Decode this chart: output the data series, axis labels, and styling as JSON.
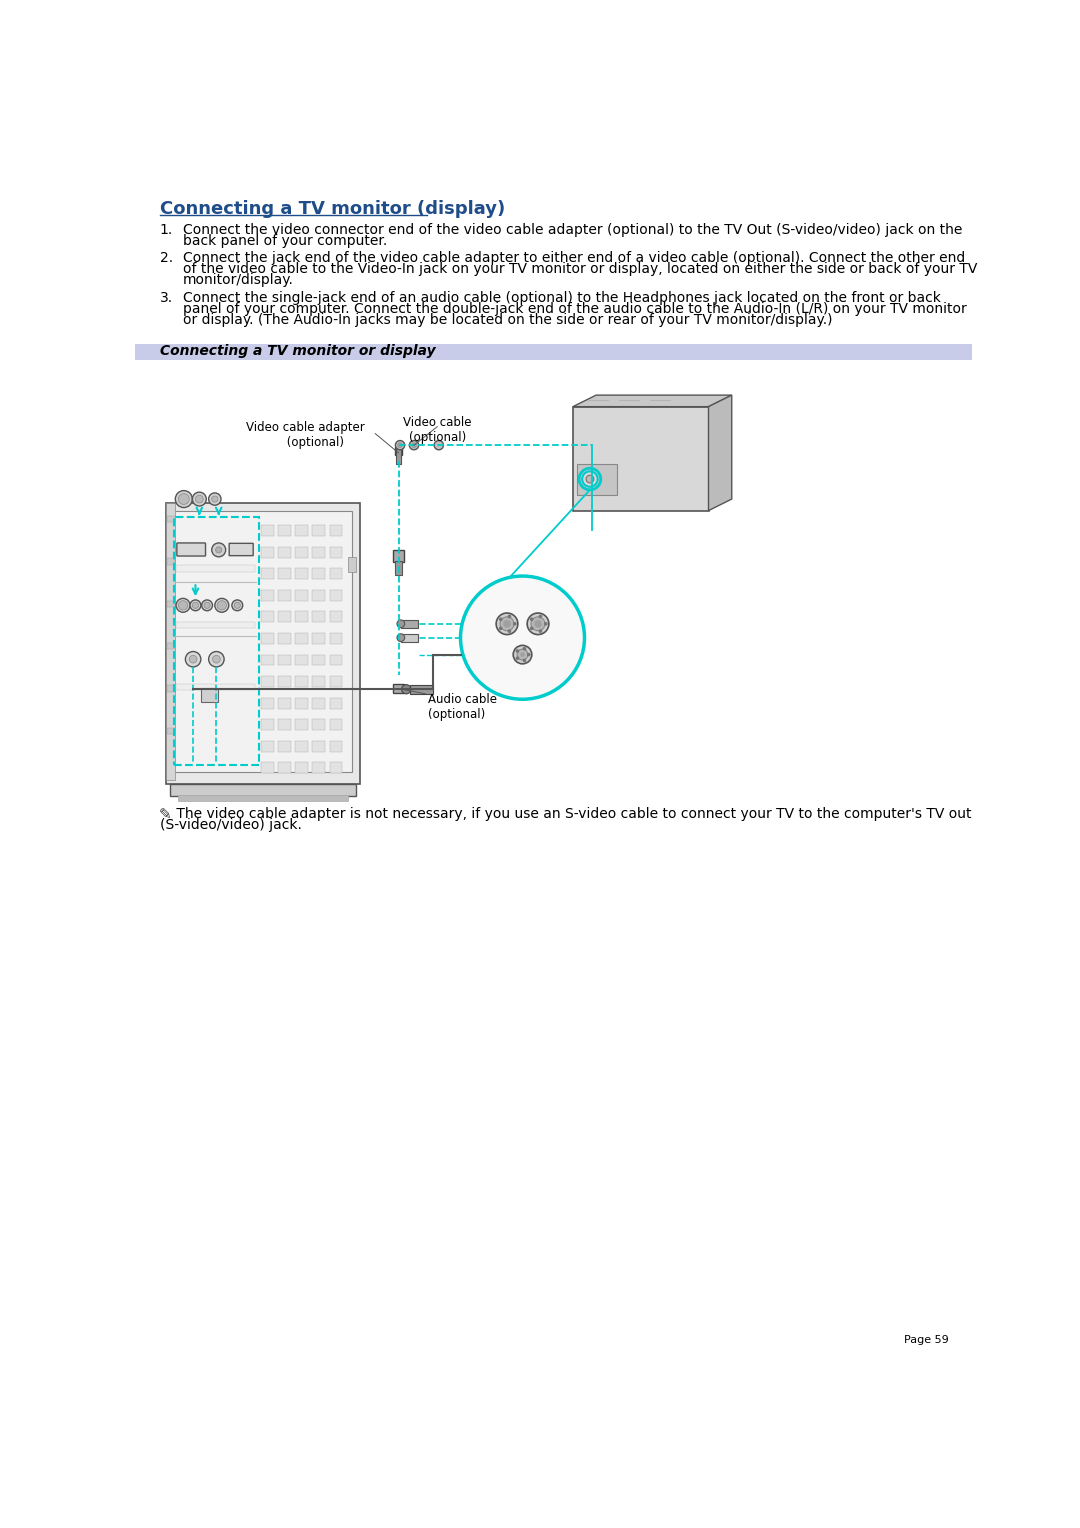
{
  "title": "Connecting a TV monitor (display)",
  "title_color": "#1f4d8a",
  "background_color": "#ffffff",
  "section_bar_color": "#c8cce8",
  "section_bar_text": "Connecting a TV monitor or display",
  "step1_num": "1.",
  "step1": "Connect the video connector end of the video cable adapter (optional) to the TV Out (S-video/video) jack on the\nback panel of your computer.",
  "step2_num": "2.",
  "step2": "Connect the jack end of the video cable adapter to either end of a video cable (optional). Connect the other end\nof the video cable to the Video-In jack on your TV monitor or display, located on either the side or back of your TV\nmonitor/display.",
  "step3_num": "3.",
  "step3": "Connect the single-jack end of an audio cable (optional) to the Headphones jack located on the front or back\npanel of your computer. Connect the double-jack end of the audio cable to the Audio-In (L/R) on your TV monitor\nor display. (The Audio-In jacks may be located on the side or rear of your TV monitor/display.)",
  "label_adapter": "Video cable adapter\n     (optional)",
  "label_video": "Video cable\n(optional)",
  "label_audio": "Audio cable\n(optional)",
  "note_text1": " The video cable adapter is not necessary, if you use an S-video cable to connect your TV to the computer's TV out",
  "note_text2": "(S-video/video) jack.",
  "page_number": "Page 59",
  "title_fs": 13,
  "body_fs": 10,
  "small_fs": 8.5,
  "section_fs": 10,
  "page_fs": 8,
  "cyan": "#00cccc",
  "dark": "#333333",
  "mid": "#888888",
  "light": "#dddddd",
  "tower_face": "#f0f0f0",
  "vent_face": "#e0e0e0"
}
